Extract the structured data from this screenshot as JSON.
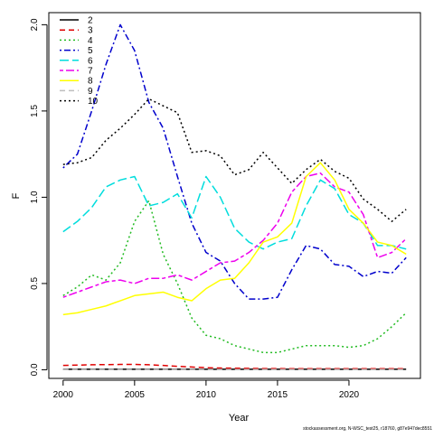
{
  "chart_data": {
    "type": "line",
    "xlabel": "Year",
    "ylabel": "F",
    "xlim": [
      1999,
      2025
    ],
    "ylim": [
      -0.05,
      2.07
    ],
    "x_ticks": [
      2000,
      2005,
      2010,
      2015,
      2020
    ],
    "y_ticks": [
      0.0,
      0.5,
      1.0,
      1.5,
      2.0
    ],
    "y_tick_labels": [
      "0.0",
      "0.5",
      "1.0",
      "1.5",
      "2.0"
    ],
    "grid": false,
    "legend_position": "top-left",
    "x": [
      2000,
      2001,
      2002,
      2003,
      2004,
      2005,
      2006,
      2007,
      2008,
      2009,
      2010,
      2011,
      2012,
      2013,
      2014,
      2015,
      2016,
      2017,
      2018,
      2019,
      2020,
      2021,
      2022,
      2023,
      2024
    ],
    "series": [
      {
        "name": "2",
        "color": "#000000",
        "dash": "solid",
        "values": [
          0.003,
          0.003,
          0.003,
          0.003,
          0.003,
          0.003,
          0.003,
          0.003,
          0.003,
          0.003,
          0.003,
          0.003,
          0.003,
          0.003,
          0.003,
          0.003,
          0.003,
          0.003,
          0.003,
          0.003,
          0.003,
          0.003,
          0.003,
          0.003,
          0.003
        ]
      },
      {
        "name": "3",
        "color": "#DF0000",
        "dash": "dashed",
        "values": [
          0.025,
          0.027,
          0.029,
          0.03,
          0.031,
          0.031,
          0.029,
          0.025,
          0.02,
          0.016,
          0.012,
          0.01,
          0.009,
          0.008,
          0.007,
          0.007,
          0.006,
          0.006,
          0.006,
          0.006,
          0.006,
          0.006,
          0.006,
          0.006,
          0.006
        ]
      },
      {
        "name": "4",
        "color": "#22BB22",
        "dash": "dotted",
        "values": [
          0.43,
          0.48,
          0.55,
          0.52,
          0.62,
          0.86,
          0.98,
          0.67,
          0.5,
          0.3,
          0.2,
          0.18,
          0.14,
          0.12,
          0.1,
          0.1,
          0.12,
          0.14,
          0.14,
          0.14,
          0.13,
          0.14,
          0.18,
          0.25,
          0.33
        ]
      },
      {
        "name": "5",
        "color": "#0000CC",
        "dash": "dotdash",
        "values": [
          1.17,
          1.25,
          1.5,
          1.77,
          2.0,
          1.85,
          1.55,
          1.4,
          1.12,
          0.85,
          0.68,
          0.63,
          0.5,
          0.41,
          0.41,
          0.42,
          0.58,
          0.72,
          0.7,
          0.61,
          0.6,
          0.54,
          0.57,
          0.56,
          0.65
        ]
      },
      {
        "name": "6",
        "color": "#00DDDD",
        "dash": "longdash",
        "values": [
          0.8,
          0.86,
          0.94,
          1.06,
          1.1,
          1.12,
          0.95,
          0.97,
          1.02,
          0.88,
          1.12,
          1.0,
          0.82,
          0.74,
          0.7,
          0.74,
          0.76,
          0.95,
          1.1,
          1.05,
          0.9,
          0.85,
          0.72,
          0.72,
          0.7
        ]
      },
      {
        "name": "7",
        "color": "#EE00EE",
        "dash": "twodash",
        "values": [
          0.42,
          0.45,
          0.48,
          0.51,
          0.52,
          0.5,
          0.53,
          0.53,
          0.55,
          0.52,
          0.57,
          0.62,
          0.63,
          0.68,
          0.75,
          0.85,
          1.03,
          1.12,
          1.14,
          1.06,
          1.03,
          0.9,
          0.65,
          0.68,
          0.76
        ]
      },
      {
        "name": "8",
        "color": "#FFFF00",
        "dash": "solid",
        "values": [
          0.32,
          0.33,
          0.35,
          0.37,
          0.4,
          0.43,
          0.44,
          0.45,
          0.42,
          0.4,
          0.47,
          0.52,
          0.53,
          0.62,
          0.74,
          0.77,
          0.85,
          1.12,
          1.2,
          1.1,
          0.93,
          0.85,
          0.74,
          0.72,
          0.67
        ]
      },
      {
        "name": "9",
        "color": "#BEBEBE",
        "dash": "dashed",
        "values": [
          0.002,
          0.002,
          0.002,
          0.002,
          0.002,
          0.002,
          0.002,
          0.002,
          0.002,
          0.002,
          0.002,
          0.002,
          0.002,
          0.002,
          0.002,
          0.002,
          0.002,
          0.002,
          0.002,
          0.002,
          0.002,
          0.002,
          0.002,
          0.002,
          0.002
        ]
      },
      {
        "name": "10",
        "color": "#000000",
        "dash": "dotted",
        "values": [
          1.19,
          1.2,
          1.23,
          1.33,
          1.4,
          1.48,
          1.57,
          1.53,
          1.49,
          1.26,
          1.27,
          1.24,
          1.13,
          1.16,
          1.26,
          1.17,
          1.08,
          1.16,
          1.22,
          1.15,
          1.11,
          0.99,
          0.93,
          0.86,
          0.93
        ]
      }
    ],
    "annotation": "stockassessment.org, N-WSC_test25, r18760, g87e947dec8551"
  }
}
